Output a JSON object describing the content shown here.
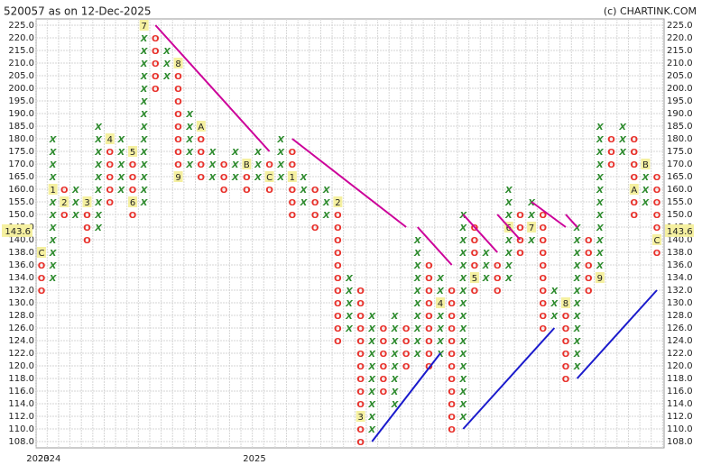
{
  "chart_data": {
    "type": "point-and-figure",
    "title": "520057 as on 12-Dec-2025",
    "credit": "(c) CHARTINK.COM",
    "current": 143.6,
    "x_color": "#2e8b2e",
    "o_color": "#e8302a",
    "marker_color": "#f5f0a0",
    "yticks": [
      {
        "value": 225,
        "label": "225.0"
      },
      {
        "value": 220,
        "label": "220.0"
      },
      {
        "value": 215,
        "label": "215.0"
      },
      {
        "value": 210,
        "label": "210.0"
      },
      {
        "value": 205,
        "label": "205.0"
      },
      {
        "value": 200,
        "label": "200.0"
      },
      {
        "value": 195,
        "label": "195.0"
      },
      {
        "value": 190,
        "label": "190.0"
      },
      {
        "value": 185,
        "label": "185.0"
      },
      {
        "value": 180,
        "label": "180.0"
      },
      {
        "value": 175,
        "label": "175.0"
      },
      {
        "value": 170,
        "label": "170.0"
      },
      {
        "value": 165,
        "label": "165.0"
      },
      {
        "value": 160,
        "label": "160.0"
      },
      {
        "value": 155,
        "label": "155.0"
      },
      {
        "value": 150,
        "label": "150.0"
      },
      {
        "value": 145,
        "label": "145.0"
      },
      {
        "value": 140,
        "label": "140.0"
      },
      {
        "value": 138,
        "label": "138.0"
      },
      {
        "value": 136,
        "label": "136.0"
      },
      {
        "value": 134,
        "label": "134.0"
      },
      {
        "value": 132,
        "label": "132.0"
      },
      {
        "value": 130,
        "label": "130.0"
      },
      {
        "value": 128,
        "label": "128.0"
      },
      {
        "value": 126,
        "label": "126.0"
      },
      {
        "value": 124,
        "label": "124.0"
      },
      {
        "value": 122,
        "label": "122.0"
      },
      {
        "value": 120,
        "label": "120.0"
      },
      {
        "value": 118,
        "label": "118.0"
      },
      {
        "value": 116,
        "label": "116.0"
      },
      {
        "value": 114,
        "label": "114.0"
      },
      {
        "value": 112,
        "label": "112.0"
      },
      {
        "value": 110,
        "label": "110.0"
      },
      {
        "value": 108,
        "label": "108.0"
      }
    ],
    "xlabels": [
      {
        "label": "2023",
        "column": 0
      },
      {
        "label": "2024",
        "column": 1
      },
      {
        "label": "2025",
        "column": 19
      }
    ],
    "columns": [
      {
        "box": "O",
        "top": 138,
        "bottom": 132,
        "markers": [
          {
            "label": "C",
            "value": 138
          }
        ]
      },
      {
        "box": "X",
        "top": 180,
        "bottom": 134,
        "markers": [
          {
            "label": "1",
            "value": 160
          }
        ]
      },
      {
        "box": "O",
        "top": 160,
        "bottom": 150,
        "markers": [
          {
            "label": "2",
            "value": 155
          }
        ]
      },
      {
        "box": "X",
        "top": 160,
        "bottom": 150,
        "markers": []
      },
      {
        "box": "O",
        "top": 155,
        "bottom": 140,
        "markers": [
          {
            "label": "3",
            "value": 155
          }
        ]
      },
      {
        "box": "X",
        "top": 185,
        "bottom": 145,
        "markers": []
      },
      {
        "box": "O",
        "top": 180,
        "bottom": 155,
        "markers": [
          {
            "label": "4",
            "value": 180
          }
        ]
      },
      {
        "box": "X",
        "top": 180,
        "bottom": 160,
        "markers": []
      },
      {
        "box": "O",
        "top": 175,
        "bottom": 150,
        "markers": [
          {
            "label": "5",
            "value": 175
          },
          {
            "label": "6",
            "value": 155
          }
        ]
      },
      {
        "box": "X",
        "top": 225,
        "bottom": 155,
        "markers": [
          {
            "label": "7",
            "value": 225
          }
        ]
      },
      {
        "box": "O",
        "top": 220,
        "bottom": 200,
        "markers": []
      },
      {
        "box": "X",
        "top": 215,
        "bottom": 205,
        "markers": []
      },
      {
        "box": "O",
        "top": 210,
        "bottom": 165,
        "markers": [
          {
            "label": "8",
            "value": 210
          },
          {
            "label": "9",
            "value": 165
          }
        ]
      },
      {
        "box": "X",
        "top": 190,
        "bottom": 170,
        "markers": []
      },
      {
        "box": "O",
        "top": 185,
        "bottom": 165,
        "markers": [
          {
            "label": "A",
            "value": 185
          }
        ]
      },
      {
        "box": "X",
        "top": 175,
        "bottom": 165,
        "markers": []
      },
      {
        "box": "O",
        "top": 170,
        "bottom": 160,
        "markers": []
      },
      {
        "box": "X",
        "top": 175,
        "bottom": 165,
        "markers": []
      },
      {
        "box": "O",
        "top": 170,
        "bottom": 160,
        "markers": [
          {
            "label": "B",
            "value": 170
          }
        ]
      },
      {
        "box": "X",
        "top": 175,
        "bottom": 165,
        "markers": []
      },
      {
        "box": "O",
        "top": 170,
        "bottom": 160,
        "markers": [
          {
            "label": "C",
            "value": 165
          }
        ]
      },
      {
        "box": "X",
        "top": 180,
        "bottom": 165,
        "markers": []
      },
      {
        "box": "O",
        "top": 175,
        "bottom": 150,
        "markers": [
          {
            "label": "1",
            "value": 165
          }
        ]
      },
      {
        "box": "X",
        "top": 165,
        "bottom": 155,
        "markers": []
      },
      {
        "box": "O",
        "top": 160,
        "bottom": 145,
        "markers": []
      },
      {
        "box": "X",
        "top": 160,
        "bottom": 150,
        "markers": []
      },
      {
        "box": "O",
        "top": 155,
        "bottom": 124,
        "markers": [
          {
            "label": "2",
            "value": 155
          }
        ]
      },
      {
        "box": "X",
        "top": 134,
        "bottom": 126,
        "markers": []
      },
      {
        "box": "O",
        "top": 132,
        "bottom": 108,
        "markers": [
          {
            "label": "3",
            "value": 112
          }
        ]
      },
      {
        "box": "X",
        "top": 128,
        "bottom": 110,
        "markers": []
      },
      {
        "box": "O",
        "top": 126,
        "bottom": 116,
        "markers": []
      },
      {
        "box": "X",
        "top": 128,
        "bottom": 114,
        "markers": []
      },
      {
        "box": "O",
        "top": 126,
        "bottom": 120,
        "markers": []
      },
      {
        "box": "X",
        "top": 140,
        "bottom": 122,
        "markers": []
      },
      {
        "box": "O",
        "top": 136,
        "bottom": 120,
        "markers": []
      },
      {
        "box": "X",
        "top": 134,
        "bottom": 122,
        "markers": [
          {
            "label": "4",
            "value": 130
          }
        ]
      },
      {
        "box": "O",
        "top": 132,
        "bottom": 110,
        "markers": []
      },
      {
        "box": "X",
        "top": 150,
        "bottom": 112,
        "markers": []
      },
      {
        "box": "O",
        "top": 145,
        "bottom": 132,
        "markers": [
          {
            "label": "5",
            "value": 134
          }
        ]
      },
      {
        "box": "X",
        "top": 138,
        "bottom": 134,
        "markers": []
      },
      {
        "box": "O",
        "top": 136,
        "bottom": 132,
        "markers": []
      },
      {
        "box": "X",
        "top": 160,
        "bottom": 134,
        "markers": [
          {
            "label": "6",
            "value": 145
          }
        ]
      },
      {
        "box": "O",
        "top": 150,
        "bottom": 138,
        "markers": []
      },
      {
        "box": "X",
        "top": 155,
        "bottom": 140,
        "markers": [
          {
            "label": "7",
            "value": 145
          }
        ]
      },
      {
        "box": "O",
        "top": 150,
        "bottom": 126,
        "markers": []
      },
      {
        "box": "X",
        "top": 132,
        "bottom": 128,
        "markers": []
      },
      {
        "box": "O",
        "top": 130,
        "bottom": 118,
        "markers": [
          {
            "label": "8",
            "value": 130
          }
        ]
      },
      {
        "box": "X",
        "top": 145,
        "bottom": 120,
        "markers": []
      },
      {
        "box": "O",
        "top": 140,
        "bottom": 132,
        "markers": []
      },
      {
        "box": "X",
        "top": 185,
        "bottom": 134,
        "markers": [
          {
            "label": "9",
            "value": 134
          }
        ]
      },
      {
        "box": "O",
        "top": 180,
        "bottom": 170,
        "markers": []
      },
      {
        "box": "X",
        "top": 185,
        "bottom": 175,
        "markers": []
      },
      {
        "box": "O",
        "top": 180,
        "bottom": 150,
        "markers": [
          {
            "label": "A",
            "value": 160
          }
        ]
      },
      {
        "box": "X",
        "top": 170,
        "bottom": 155,
        "markers": [
          {
            "label": "B",
            "value": 170
          }
        ]
      },
      {
        "box": "O",
        "top": 165,
        "bottom": 138,
        "markers": [
          {
            "label": "C",
            "value": 140
          }
        ]
      }
    ],
    "trendlines": [
      {
        "color": "#cc0099",
        "from": [
          10,
          225
        ],
        "to": [
          20,
          175
        ]
      },
      {
        "color": "#cc0099",
        "from": [
          22,
          180
        ],
        "to": [
          32,
          145
        ]
      },
      {
        "color": "#cc0099",
        "from": [
          33,
          145
        ],
        "to": [
          36,
          136
        ]
      },
      {
        "color": "#cc0099",
        "from": [
          37,
          150
        ],
        "to": [
          40,
          138
        ]
      },
      {
        "color": "#cc0099",
        "from": [
          40,
          150
        ],
        "to": [
          42,
          140
        ]
      },
      {
        "color": "#cc0099",
        "from": [
          43,
          155
        ],
        "to": [
          46,
          145
        ]
      },
      {
        "color": "#cc0099",
        "from": [
          46,
          150
        ],
        "to": [
          47,
          145
        ]
      },
      {
        "color": "#1a1acc",
        "from": [
          29,
          108
        ],
        "to": [
          35,
          122
        ]
      },
      {
        "color": "#1a1acc",
        "from": [
          37,
          110
        ],
        "to": [
          45,
          126
        ]
      },
      {
        "color": "#1a1acc",
        "from": [
          47,
          118
        ],
        "to": [
          54,
          132
        ]
      }
    ]
  }
}
